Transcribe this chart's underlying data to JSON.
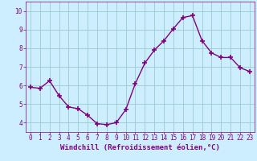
{
  "x": [
    0,
    1,
    2,
    3,
    4,
    5,
    6,
    7,
    8,
    9,
    10,
    11,
    12,
    13,
    14,
    15,
    16,
    17,
    18,
    19,
    20,
    21,
    22,
    23
  ],
  "y": [
    5.9,
    5.85,
    6.25,
    5.45,
    4.85,
    4.75,
    4.4,
    3.95,
    3.9,
    4.0,
    4.7,
    6.1,
    7.2,
    7.9,
    8.4,
    9.05,
    9.65,
    9.75,
    8.4,
    7.75,
    7.5,
    7.5,
    6.95,
    6.75
  ],
  "line_color": "#800080",
  "marker": "+",
  "marker_size": 4,
  "marker_linewidth": 1.2,
  "bg_color": "#cceeff",
  "grid_color": "#99cccc",
  "xlabel": "Windchill (Refroidissement éolien,°C)",
  "ylim": [
    3.5,
    10.5
  ],
  "xlim": [
    -0.5,
    23.5
  ],
  "yticks": [
    4,
    5,
    6,
    7,
    8,
    9,
    10
  ],
  "xticks": [
    0,
    1,
    2,
    3,
    4,
    5,
    6,
    7,
    8,
    9,
    10,
    11,
    12,
    13,
    14,
    15,
    16,
    17,
    18,
    19,
    20,
    21,
    22,
    23
  ],
  "text_color": "#800080",
  "label_fontsize": 6.5,
  "tick_fontsize": 5.5,
  "line_width": 1.0
}
